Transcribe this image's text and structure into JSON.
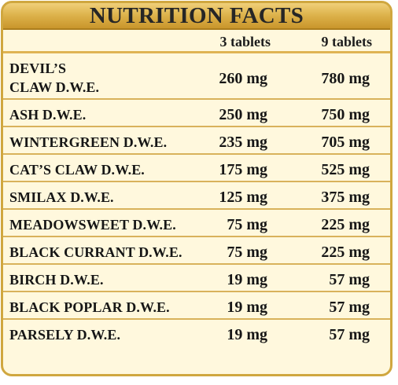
{
  "title": "NUTRITION FACTS",
  "columns": {
    "first": "3 tablets",
    "second": "9 tablets"
  },
  "rows": [
    {
      "name": "DEVIL’S\nCLAW D.W.E.",
      "three": "260 mg",
      "nine": "780 mg"
    },
    {
      "name": "ASH D.W.E.",
      "three": "250 mg",
      "nine": "750 mg"
    },
    {
      "name": "WINTERGREEN D.W.E.",
      "three": "235 mg",
      "nine": "705 mg"
    },
    {
      "name": "CAT’S CLAW D.W.E.",
      "three": "175 mg",
      "nine": "525 mg"
    },
    {
      "name": "SMILAX D.W.E.",
      "three": "125 mg",
      "nine": "375 mg"
    },
    {
      "name": "MEADOWSWEET D.W.E.",
      "three": "75 mg",
      "nine": "225 mg"
    },
    {
      "name": "BLACK CURRANT D.W.E.",
      "three": "75 mg",
      "nine": "225 mg"
    },
    {
      "name": "BIRCH D.W.E.",
      "three": "19 mg",
      "nine": "57 mg"
    },
    {
      "name": "BLACK POPLAR D.W.E.",
      "three": "19 mg",
      "nine": "57 mg"
    },
    {
      "name": "PARSELY D.W.E.",
      "three": "19 mg",
      "nine": "57 mg"
    }
  ],
  "colors": {
    "panel": "#fff8dd",
    "gold": "#d0a73f",
    "divider": "#d9b25b",
    "text": "#161616"
  }
}
